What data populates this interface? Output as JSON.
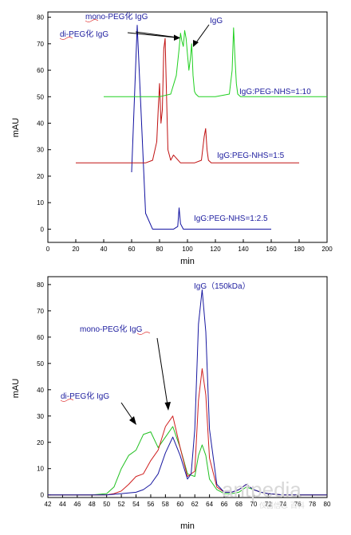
{
  "chart_data": [
    {
      "type": "line",
      "xlabel": "min",
      "ylabel": "mAU",
      "xlim": [
        0,
        200
      ],
      "ylim": [
        -5,
        82
      ],
      "xticks": [
        0,
        20,
        40,
        60,
        80,
        100,
        120,
        140,
        160,
        180,
        200
      ],
      "yticks": [
        0,
        10,
        20,
        30,
        40,
        50,
        60,
        70,
        80
      ],
      "grid": false,
      "series": [
        {
          "name": "IgG:PEG-NHS=1:2.5",
          "color": "#1010a0",
          "x": [
            60,
            64,
            70,
            75,
            80,
            85,
            90,
            93,
            94,
            95,
            97,
            100,
            110,
            120,
            130,
            140,
            150,
            160
          ],
          "y": [
            21.5,
            77,
            6,
            0,
            0,
            0,
            0,
            1,
            8,
            2,
            0,
            0,
            0,
            0,
            0,
            0,
            0,
            0
          ]
        },
        {
          "name": "IgG:PEG-NHS=1:5",
          "color": "#c01010",
          "x": [
            20,
            40,
            60,
            70,
            75,
            78,
            79,
            80,
            81,
            82,
            83,
            84,
            85,
            86,
            88,
            90,
            95,
            105,
            110,
            112,
            113,
            114,
            115,
            117,
            120,
            130,
            140,
            160,
            180
          ],
          "y": [
            25,
            25,
            25,
            25,
            26,
            33,
            45,
            55,
            40,
            45,
            68,
            72,
            50,
            30,
            26,
            28,
            25,
            25,
            26,
            35,
            38,
            30,
            26,
            25,
            25,
            25,
            25,
            25,
            25
          ]
        },
        {
          "name": "IgG:PEG-NHS=1:10",
          "color": "#20d020",
          "x": [
            40,
            60,
            80,
            88,
            92,
            94,
            95,
            96,
            97,
            98,
            99,
            100,
            101,
            102,
            103,
            104,
            105,
            106,
            108,
            110,
            120,
            130,
            132,
            133,
            134,
            135,
            136,
            138,
            140,
            160,
            180,
            200
          ],
          "y": [
            50,
            50,
            50,
            51,
            58,
            68,
            74,
            71,
            69,
            75,
            72,
            66,
            60,
            64,
            70,
            58,
            52,
            51,
            50,
            50,
            50,
            51,
            60,
            76,
            65,
            55,
            51,
            50,
            50,
            50,
            50,
            50
          ]
        }
      ],
      "annotations": [
        {
          "text": "mono-PEG化 IgG",
          "color": "#2020a0"
        },
        {
          "text": "di-PEG化 IgG",
          "color": "#2020a0"
        },
        {
          "text": "IgG",
          "color": "#2020a0"
        }
      ]
    },
    {
      "type": "line",
      "xlabel": "min",
      "ylabel": "mAU",
      "xlim": [
        42,
        80
      ],
      "ylim": [
        -1,
        83
      ],
      "xticks": [
        42,
        44,
        46,
        48,
        50,
        52,
        54,
        56,
        58,
        60,
        62,
        64,
        66,
        68,
        70,
        72,
        74,
        76,
        78,
        80
      ],
      "yticks": [
        0,
        10,
        20,
        30,
        40,
        50,
        60,
        70,
        80
      ],
      "grid": false,
      "series": [
        {
          "color": "#20c020",
          "x": [
            42,
            48,
            50,
            51,
            52,
            53,
            54,
            55,
            56,
            57,
            58,
            59,
            60,
            61,
            62,
            62.5,
            63,
            63.5,
            64,
            65,
            66,
            67,
            68,
            69,
            70,
            71,
            72,
            74,
            76,
            78,
            80
          ],
          "y": [
            0,
            0,
            0.5,
            3,
            10,
            15,
            17,
            23,
            24,
            18,
            22,
            26,
            18,
            8,
            7,
            15,
            19,
            15,
            6,
            2,
            0.5,
            0.5,
            1,
            3,
            2,
            1,
            0.5,
            0,
            0,
            0,
            0
          ]
        },
        {
          "color": "#d02020",
          "x": [
            42,
            50,
            51,
            52,
            53,
            54,
            55,
            56,
            57,
            58,
            59,
            60,
            61,
            62,
            62.5,
            63,
            63.5,
            64,
            65,
            66,
            67,
            68,
            69,
            70,
            71,
            72,
            74,
            76,
            78,
            80
          ],
          "y": [
            0,
            0,
            0.5,
            1.5,
            4,
            7,
            8,
            13,
            17,
            26,
            30,
            18,
            7,
            9,
            36,
            48,
            38,
            14,
            3,
            1,
            1,
            2,
            4,
            2,
            1,
            0.5,
            0,
            0,
            0,
            0
          ]
        },
        {
          "color": "#1818a0",
          "x": [
            42,
            50,
            52,
            54,
            55,
            56,
            57,
            58,
            59,
            60,
            61,
            61.5,
            62,
            62.5,
            63,
            63.5,
            64,
            65,
            66,
            67,
            68,
            69,
            70,
            71,
            72,
            74,
            76,
            78,
            80
          ],
          "y": [
            0,
            0,
            0.5,
            1,
            2,
            4,
            8,
            16,
            22,
            15,
            6,
            8,
            25,
            65,
            78,
            62,
            25,
            4,
            1,
            1,
            2,
            4,
            2,
            1,
            0.5,
            0,
            0,
            0,
            0
          ]
        }
      ],
      "annotations": [
        {
          "text": "IgG（150kDa）",
          "color": "#2020a0"
        },
        {
          "text": "mono-PEG化 IgG",
          "color": "#2020a0"
        },
        {
          "text": "di-PEG化 IgG",
          "color": "#2020a0"
        }
      ]
    }
  ],
  "watermark": {
    "text": "antpedia",
    "subtext": "仪器信息 百科"
  }
}
